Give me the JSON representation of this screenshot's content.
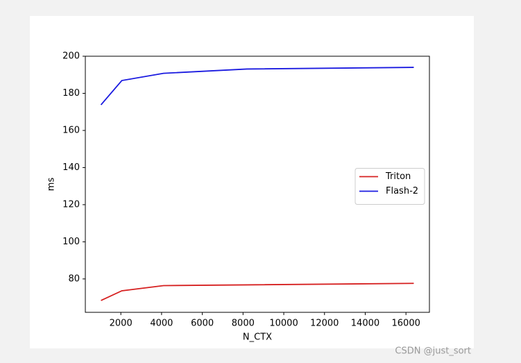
{
  "chart_data": {
    "type": "line",
    "xlabel": "N_CTX",
    "ylabel": "ms",
    "x": [
      1024,
      2048,
      4096,
      8192,
      16384
    ],
    "series": [
      {
        "name": "Triton",
        "color": "#d62020",
        "values": [
          68.4,
          73.6,
          76.4,
          76.8,
          77.6
        ]
      },
      {
        "name": "Flash-2",
        "color": "#1a1ae0",
        "values": [
          173.8,
          186.9,
          190.8,
          193.1,
          194.0
        ]
      }
    ],
    "xlim": [
      256,
      17152
    ],
    "xticks": [
      2000,
      4000,
      6000,
      8000,
      10000,
      12000,
      14000,
      16000
    ],
    "ylim": [
      62,
      200
    ],
    "yticks": [
      80,
      100,
      120,
      140,
      160,
      180,
      200
    ],
    "grid": false,
    "legend": "center right"
  },
  "watermark": "CSDN @just_sort"
}
